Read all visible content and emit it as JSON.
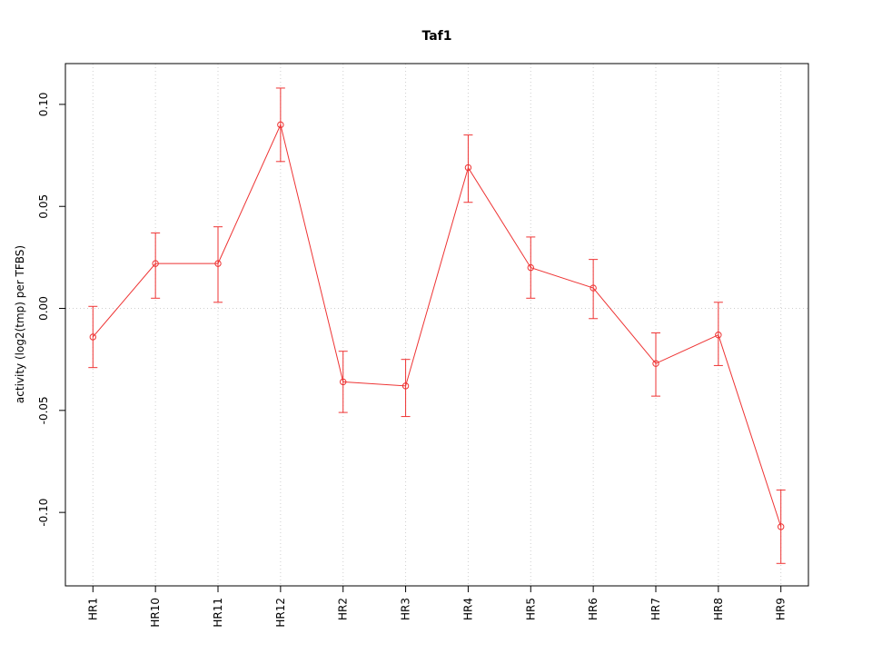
{
  "chart_data": {
    "type": "line",
    "title": "Taf1",
    "xlabel": "",
    "ylabel": "activity (log2(tmp) per TFBS)",
    "categories": [
      "HR1",
      "HR10",
      "HR11",
      "HR12",
      "HR2",
      "HR3",
      "HR4",
      "HR5",
      "HR6",
      "HR7",
      "HR8",
      "HR9"
    ],
    "values": [
      -0.014,
      0.022,
      0.022,
      0.09,
      -0.036,
      -0.038,
      0.069,
      0.02,
      0.01,
      -0.027,
      -0.013,
      -0.107
    ],
    "error_low": [
      -0.029,
      0.005,
      0.003,
      0.072,
      -0.051,
      -0.053,
      0.052,
      0.005,
      -0.005,
      -0.043,
      -0.028,
      -0.125
    ],
    "error_high": [
      0.001,
      0.037,
      0.04,
      0.108,
      -0.021,
      -0.025,
      0.085,
      0.035,
      0.024,
      -0.012,
      0.003,
      -0.089
    ],
    "ylim": [
      -0.136,
      0.12
    ],
    "yticks": [
      -0.1,
      -0.05,
      0.0,
      0.05,
      0.1
    ],
    "ytick_labels": [
      "-0.10",
      "-0.05",
      "0.00",
      "0.05",
      "0.10"
    ],
    "x_pad_frac": 0.04,
    "grid": true,
    "zero_line": true,
    "legend_position": "none",
    "point_style": "open-circle",
    "error_bar_style": "capped",
    "series_color": "#ee3333",
    "grid_color": "#cfcfcf",
    "axis_color": "#000000",
    "background_color": "#ffffff"
  }
}
